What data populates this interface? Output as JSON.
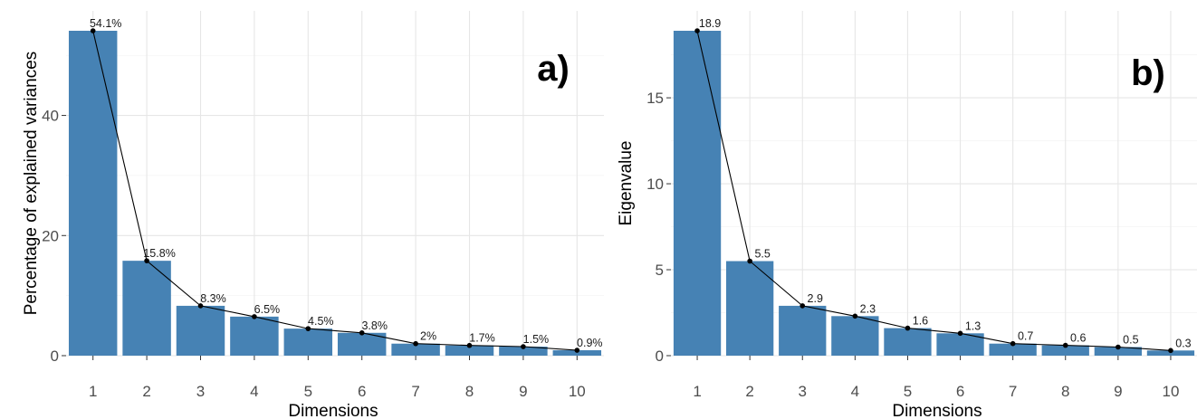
{
  "chart_data": [
    {
      "type": "bar",
      "panel_tag": "a)",
      "xlabel": "Dimensions",
      "ylabel": "Percentage of explained variances",
      "categories": [
        "1",
        "2",
        "3",
        "4",
        "5",
        "6",
        "7",
        "8",
        "9",
        "10"
      ],
      "values": [
        54.1,
        15.8,
        8.3,
        6.5,
        4.5,
        3.8,
        2.0,
        1.7,
        1.5,
        0.9
      ],
      "data_labels": [
        "54.1%",
        "15.8%",
        "8.3%",
        "6.5%",
        "4.5%",
        "3.8%",
        "2%",
        "1.7%",
        "1.5%",
        "0.9%"
      ],
      "yticks": [
        0,
        20,
        40
      ],
      "ytick_labels": [
        "0",
        "20",
        "40"
      ],
      "ylim": [
        0,
        54.1
      ],
      "overlay": "line-with-points",
      "bar_color": "#4682b4",
      "grid": true
    },
    {
      "type": "bar",
      "panel_tag": "b)",
      "xlabel": "Dimensions",
      "ylabel": "Eigenvalue",
      "categories": [
        "1",
        "2",
        "3",
        "4",
        "5",
        "6",
        "7",
        "8",
        "9",
        "10"
      ],
      "values": [
        18.9,
        5.5,
        2.9,
        2.3,
        1.6,
        1.3,
        0.7,
        0.6,
        0.5,
        0.3
      ],
      "data_labels": [
        "18.9",
        "5.5",
        "2.9",
        "2.3",
        "1.6",
        "1.3",
        "0.7",
        "0.6",
        "0.5",
        "0.3"
      ],
      "yticks": [
        0,
        5,
        10,
        15
      ],
      "ytick_labels": [
        "0",
        "5",
        "10",
        "15"
      ],
      "ylim": [
        0,
        18.9
      ],
      "overlay": "line-with-points",
      "bar_color": "#4682b4",
      "grid": true
    }
  ]
}
